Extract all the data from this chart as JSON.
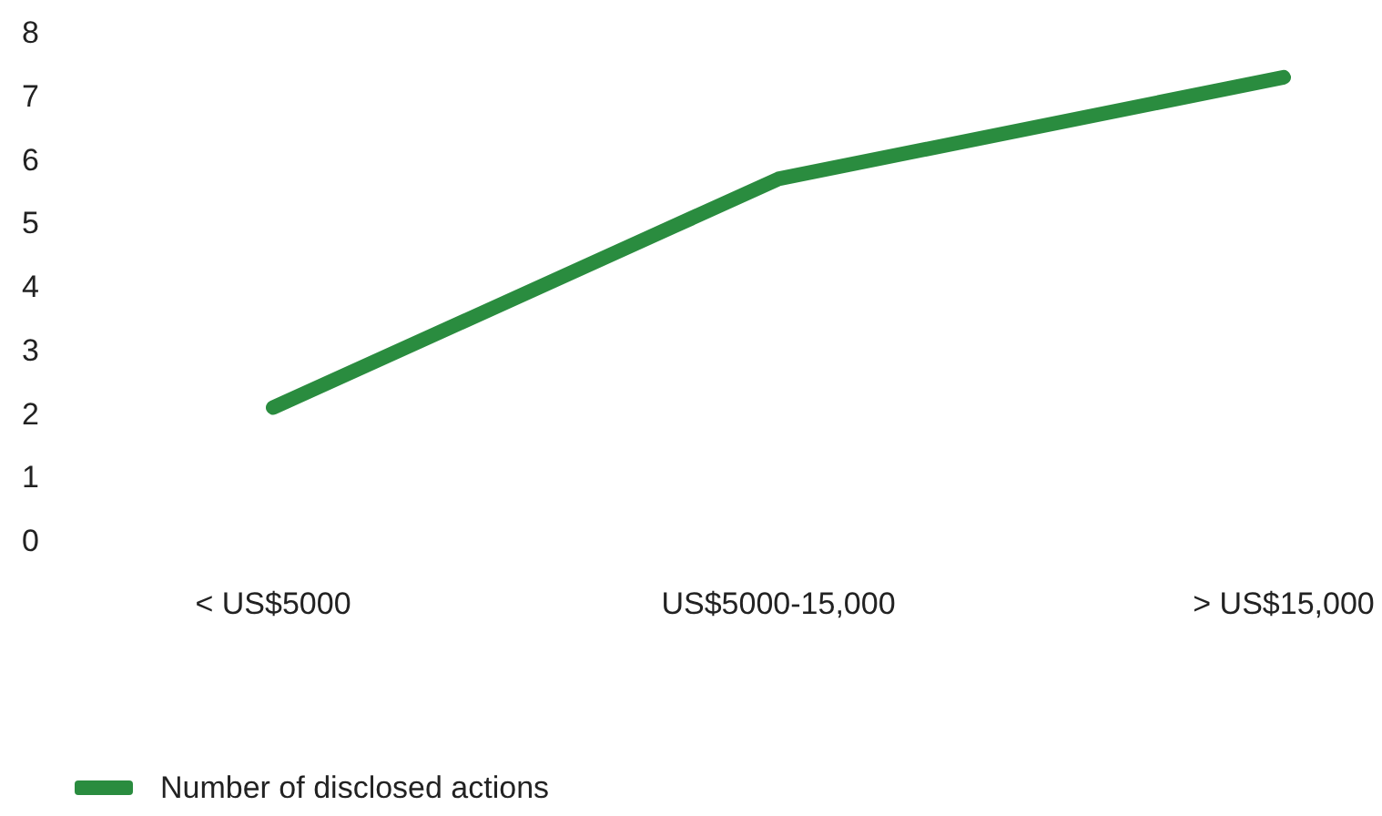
{
  "chart_data": {
    "type": "line",
    "categories": [
      "< US$5000",
      "US$5000-15,000",
      "> US$15,000"
    ],
    "series": [
      {
        "name": "Number of disclosed actions",
        "color": "#2a8c3f",
        "values": [
          2.1,
          5.7,
          7.3
        ]
      }
    ],
    "ylim": [
      0,
      8
    ],
    "yticks": [
      0,
      1,
      2,
      3,
      4,
      5,
      6,
      7,
      8
    ],
    "grid": false,
    "legend": "bottom left",
    "marker": "none",
    "line_style": "solid"
  }
}
